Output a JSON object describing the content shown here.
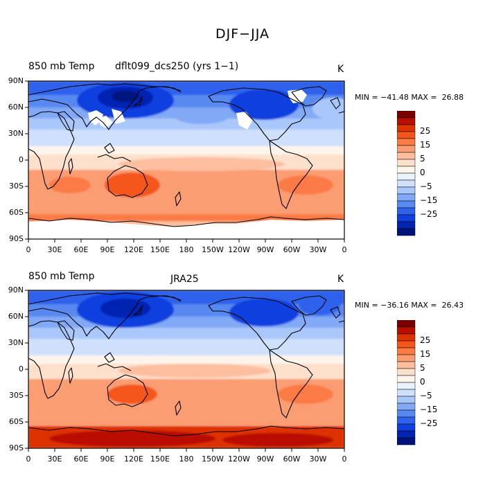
{
  "figure_title": "DJF−JJA",
  "panels": [
    {
      "title_left": "850 mb Temp",
      "title_center": "dflt099_dcs250 (yrs 1−1)",
      "unit": "K",
      "stats": "MIN = −41.48 MAX =  26.88",
      "min": -41.48,
      "max": 26.88
    },
    {
      "title_left": "850 mb Temp",
      "title_center": "JRA25",
      "unit": "K",
      "stats": "MIN = −36.16 MAX =  26.43",
      "min": -36.16,
      "max": 26.43
    }
  ],
  "lat_labels": [
    "90N",
    "60N",
    "30N",
    "0",
    "30S",
    "60S",
    "90S"
  ],
  "lon_labels": [
    "0",
    "30E",
    "60E",
    "90E",
    "120E",
    "150E",
    "180",
    "150W",
    "120W",
    "90W",
    "60W",
    "30W",
    "0"
  ],
  "legend": {
    "labels": [
      "25",
      "15",
      "5",
      "0",
      "−5",
      "−15",
      "−25"
    ],
    "colors": [
      "#7a0000",
      "#b80f00",
      "#dd3300",
      "#f4561b",
      "#fb7a45",
      "#fb9d73",
      "#fcbe9f",
      "#fde0cc",
      "#fff4ec",
      "#eaf2fe",
      "#cfe0fd",
      "#aac7fb",
      "#81a9f6",
      "#5889f1",
      "#2f62ec",
      "#0f3fde",
      "#0423b0",
      "#00127e"
    ]
  }
}
